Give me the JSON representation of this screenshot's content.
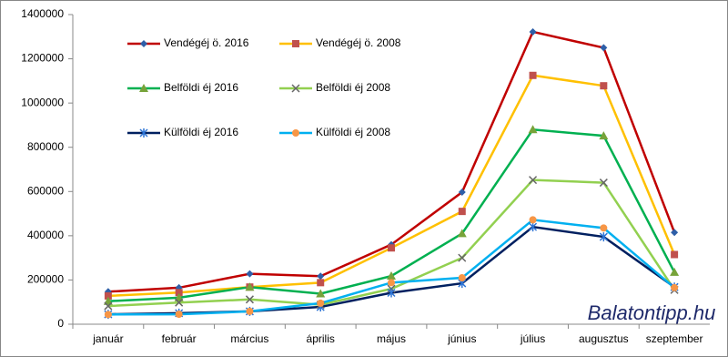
{
  "chart_data": {
    "type": "line",
    "categories": [
      "január",
      "február",
      "március",
      "április",
      "május",
      "június",
      "július",
      "augusztus",
      "szeptember"
    ],
    "series": [
      {
        "name": "Vendégéj ö. 2016",
        "color": "#c00000",
        "marker": "diamond",
        "marker_color": "#2e5fa8",
        "values": [
          147000,
          165000,
          228000,
          217000,
          360000,
          597000,
          1322000,
          1250000,
          415000
        ]
      },
      {
        "name": "Vendégéj ö. 2008",
        "color": "#ffc000",
        "marker": "square",
        "marker_color": "#c0504d",
        "values": [
          128000,
          143000,
          168000,
          188000,
          345000,
          510000,
          1125000,
          1078000,
          315000
        ]
      },
      {
        "name": "Belföldi éj 2016",
        "color": "#00b050",
        "marker": "triangle",
        "marker_color": "#77a33a",
        "values": [
          104000,
          120000,
          168000,
          138000,
          218000,
          410000,
          880000,
          852000,
          235000
        ]
      },
      {
        "name": "Belföldi éj 2008",
        "color": "#92d050",
        "marker": "x",
        "marker_color": "#666666",
        "values": [
          82000,
          98000,
          112000,
          88000,
          160000,
          300000,
          652000,
          640000,
          155000
        ]
      },
      {
        "name": "Külföldi éj 2016",
        "color": "#002060",
        "marker": "star",
        "marker_color": "#2e75d6",
        "values": [
          45000,
          50000,
          58000,
          78000,
          142000,
          185000,
          440000,
          395000,
          168000
        ]
      },
      {
        "name": "Külföldi éj 2008",
        "color": "#00b0f0",
        "marker": "circle",
        "marker_color": "#f79646",
        "values": [
          44000,
          45000,
          58000,
          95000,
          188000,
          210000,
          472000,
          435000,
          165000
        ]
      }
    ],
    "ylim": [
      0,
      1400000
    ],
    "yticks": [
      0,
      200000,
      400000,
      600000,
      800000,
      1000000,
      1200000,
      1400000
    ],
    "grid": false,
    "watermark": "Balatontipp.hu"
  }
}
